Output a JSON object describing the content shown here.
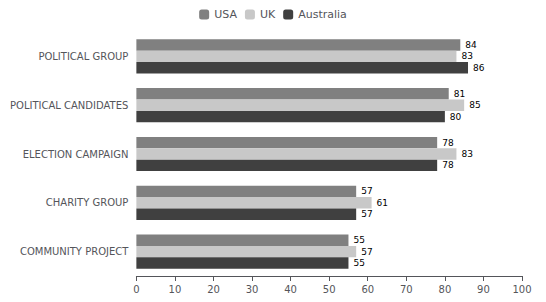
{
  "chart_data": {
    "type": "bar",
    "orientation": "horizontal",
    "categories": [
      "POLITICAL GROUP",
      "POLITICAL CANDIDATES",
      "ELECTION CAMPAIGN",
      "CHARITY GROUP",
      "COMMUNITY PROJECT"
    ],
    "series": [
      {
        "name": "USA",
        "color": "#808080",
        "values": [
          84,
          81,
          78,
          57,
          55
        ]
      },
      {
        "name": "UK",
        "color": "#c8c8c8",
        "values": [
          83,
          85,
          83,
          61,
          57
        ]
      },
      {
        "name": "Australia",
        "color": "#404040",
        "values": [
          86,
          80,
          78,
          57,
          55
        ]
      }
    ],
    "xlim": [
      0,
      100
    ],
    "xticks": [
      0,
      10,
      20,
      30,
      40,
      50,
      60,
      70,
      80,
      90,
      100
    ],
    "data_labels": true,
    "grid": false,
    "legend": "top"
  }
}
